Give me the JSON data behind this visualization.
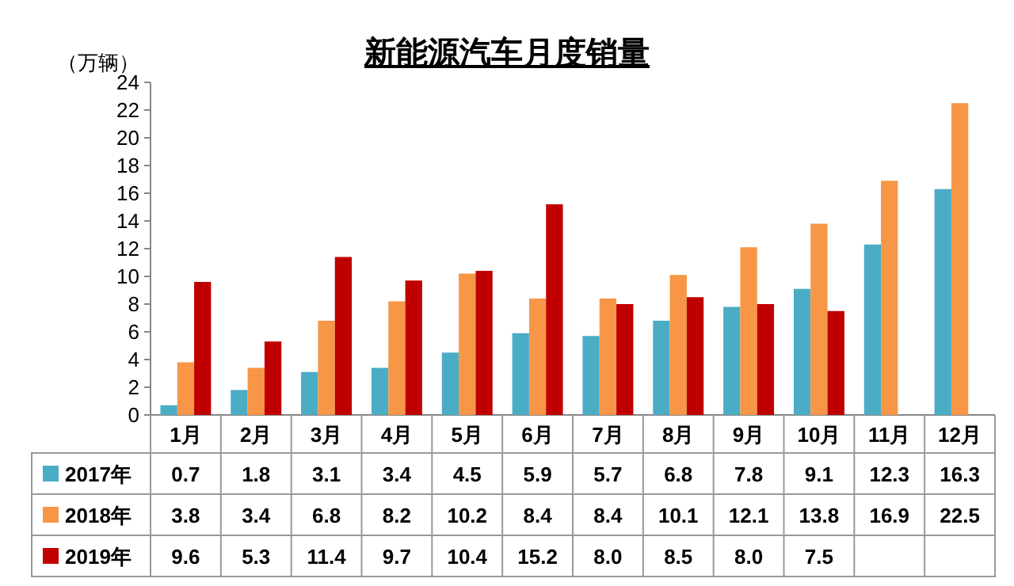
{
  "chart_data": {
    "type": "bar",
    "title": "新能源汽车月度销量",
    "ylabel": "（万辆）",
    "categories": [
      "1月",
      "2月",
      "3月",
      "4月",
      "5月",
      "6月",
      "7月",
      "8月",
      "9月",
      "10月",
      "11月",
      "12月"
    ],
    "series": [
      {
        "name": "2017年",
        "color": "#4bacc6",
        "values": [
          0.7,
          1.8,
          3.1,
          3.4,
          4.5,
          5.9,
          5.7,
          6.8,
          7.8,
          9.1,
          12.3,
          16.3
        ],
        "value_labels": [
          "0.7",
          "1.8",
          "3.1",
          "3.4",
          "4.5",
          "5.9",
          "5.7",
          "6.8",
          "7.8",
          "9.1",
          "12.3",
          "16.3"
        ]
      },
      {
        "name": "2018年",
        "color": "#f79646",
        "values": [
          3.8,
          3.4,
          6.8,
          8.2,
          10.2,
          8.4,
          8.4,
          10.1,
          12.1,
          13.8,
          16.9,
          22.5
        ],
        "value_labels": [
          "3.8",
          "3.4",
          "6.8",
          "8.2",
          "10.2",
          "8.4",
          "8.4",
          "10.1",
          "12.1",
          "13.8",
          "16.9",
          "22.5"
        ]
      },
      {
        "name": "2019年",
        "color": "#c00000",
        "values": [
          9.6,
          5.3,
          11.4,
          9.7,
          10.4,
          15.2,
          8.0,
          8.5,
          8.0,
          7.5,
          null,
          null
        ],
        "value_labels": [
          "9.6",
          "5.3",
          "11.4",
          "9.7",
          "10.4",
          "15.2",
          "8.0",
          "8.5",
          "8.0",
          "7.5",
          null,
          null
        ]
      }
    ],
    "ylim": [
      0,
      24
    ],
    "yticks": [
      0,
      2,
      4,
      6,
      8,
      10,
      12,
      14,
      16,
      18,
      20,
      22,
      24
    ],
    "legend": "bottom"
  }
}
